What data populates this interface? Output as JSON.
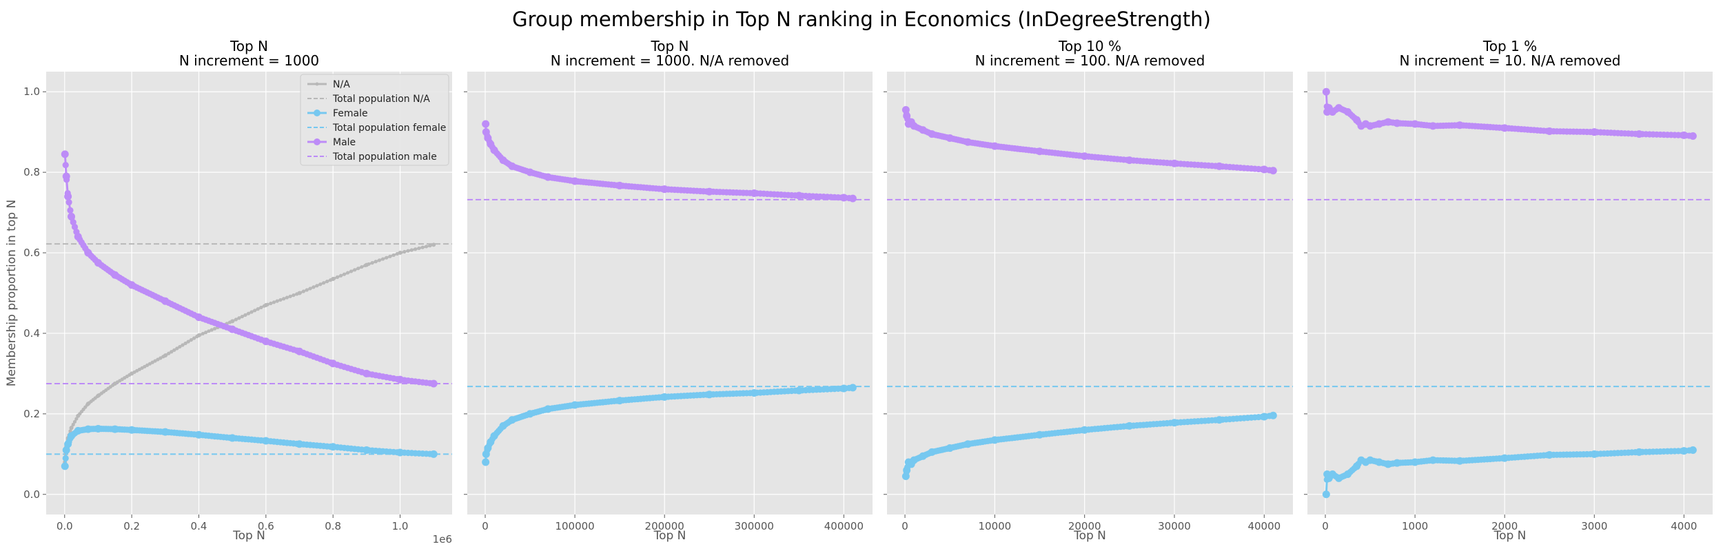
{
  "figure": {
    "title": "Group membership in Top N ranking in Economics (InDegreeStrength)"
  },
  "colors": {
    "na": "#b8b8b8",
    "female": "#76c8f0",
    "male": "#bd8cf7",
    "axes_bg": "#e5e5e5",
    "grid": "#ffffff"
  },
  "legend": {
    "entries": [
      "N/A",
      "Total population N/A",
      "Female",
      "Total population female",
      "Male",
      "Total population male"
    ]
  },
  "chart_data": [
    {
      "type": "line",
      "title": "Top N",
      "subtitle": "N increment = 1000",
      "xlabel": "Top N",
      "ylabel": "Membership proportion in top N",
      "x_offset_label": "1e6",
      "xlim": [
        -0.055,
        1.155
      ],
      "ylim": [
        -0.05,
        1.05
      ],
      "xticks": [
        0.0,
        0.2,
        0.4,
        0.6,
        0.8,
        1.0
      ],
      "xtick_labels": [
        "0.0",
        "0.2",
        "0.4",
        "0.6",
        "0.8",
        "1.0"
      ],
      "yticks": [
        0.0,
        0.2,
        0.4,
        0.6,
        0.8,
        1.0
      ],
      "ytick_labels": [
        "0.0",
        "0.2",
        "0.4",
        "0.6",
        "0.8",
        "1.0"
      ],
      "grid": true,
      "legend_position": "top-right",
      "series": [
        {
          "name": "N/A",
          "color_key": "na",
          "x": [
            0.001,
            0.005,
            0.01,
            0.02,
            0.04,
            0.07,
            0.1,
            0.15,
            0.2,
            0.3,
            0.4,
            0.5,
            0.6,
            0.7,
            0.8,
            0.9,
            1.0,
            1.1
          ],
          "y": [
            0.08,
            0.12,
            0.14,
            0.165,
            0.195,
            0.225,
            0.245,
            0.275,
            0.3,
            0.345,
            0.395,
            0.43,
            0.47,
            0.5,
            0.535,
            0.57,
            0.6,
            0.62
          ]
        },
        {
          "name": "Female",
          "color_key": "female",
          "x": [
            0.001,
            0.005,
            0.01,
            0.02,
            0.04,
            0.07,
            0.1,
            0.15,
            0.2,
            0.3,
            0.4,
            0.5,
            0.6,
            0.7,
            0.8,
            0.9,
            1.0,
            1.1
          ],
          "y": [
            0.07,
            0.11,
            0.125,
            0.145,
            0.158,
            0.162,
            0.163,
            0.162,
            0.16,
            0.155,
            0.148,
            0.14,
            0.133,
            0.125,
            0.118,
            0.11,
            0.104,
            0.1
          ]
        },
        {
          "name": "Male",
          "color_key": "male",
          "x": [
            0.001,
            0.005,
            0.01,
            0.02,
            0.04,
            0.07,
            0.1,
            0.15,
            0.2,
            0.3,
            0.4,
            0.5,
            0.6,
            0.7,
            0.8,
            0.9,
            1.0,
            1.1
          ],
          "y": [
            0.845,
            0.79,
            0.74,
            0.69,
            0.64,
            0.6,
            0.575,
            0.545,
            0.52,
            0.48,
            0.44,
            0.41,
            0.38,
            0.355,
            0.325,
            0.3,
            0.285,
            0.275
          ]
        }
      ],
      "reference_lines": [
        {
          "name": "Total population N/A",
          "color_key": "na",
          "y": 0.622
        },
        {
          "name": "Total population female",
          "color_key": "female",
          "y": 0.1
        },
        {
          "name": "Total population male",
          "color_key": "male",
          "y": 0.275
        }
      ]
    },
    {
      "type": "line",
      "title": "Top N",
      "subtitle": "N increment = 1000. N/A removed",
      "xlabel": "Top N",
      "xlim": [
        -20000,
        432000
      ],
      "ylim": [
        -0.05,
        1.05
      ],
      "xticks": [
        0,
        100000,
        200000,
        300000,
        400000
      ],
      "xtick_labels": [
        "0",
        "100000",
        "200000",
        "300000",
        "400000"
      ],
      "yticks": [
        0.0,
        0.2,
        0.4,
        0.6,
        0.8,
        1.0
      ],
      "grid": true,
      "series": [
        {
          "name": "Female",
          "color_key": "female",
          "x": [
            500,
            1000,
            3000,
            6000,
            10000,
            20000,
            30000,
            50000,
            70000,
            100000,
            150000,
            200000,
            250000,
            300000,
            350000,
            400000,
            410000
          ],
          "y": [
            0.08,
            0.1,
            0.115,
            0.13,
            0.145,
            0.17,
            0.185,
            0.2,
            0.212,
            0.222,
            0.233,
            0.242,
            0.248,
            0.252,
            0.258,
            0.263,
            0.265
          ]
        },
        {
          "name": "Male",
          "color_key": "male",
          "x": [
            500,
            1000,
            3000,
            6000,
            10000,
            20000,
            30000,
            50000,
            70000,
            100000,
            150000,
            200000,
            250000,
            300000,
            350000,
            400000,
            410000
          ],
          "y": [
            0.92,
            0.9,
            0.885,
            0.87,
            0.855,
            0.83,
            0.815,
            0.8,
            0.788,
            0.778,
            0.767,
            0.758,
            0.752,
            0.748,
            0.742,
            0.737,
            0.735
          ]
        }
      ],
      "reference_lines": [
        {
          "name": "Total population female",
          "color_key": "female",
          "y": 0.268
        },
        {
          "name": "Total population male",
          "color_key": "male",
          "y": 0.732
        }
      ]
    },
    {
      "type": "line",
      "title": "Top 10 %",
      "subtitle": "N increment = 100. N/A removed",
      "xlabel": "Top N",
      "xlim": [
        -2000,
        43200
      ],
      "ylim": [
        -0.05,
        1.05
      ],
      "xticks": [
        0,
        10000,
        20000,
        30000,
        40000
      ],
      "xtick_labels": [
        "0",
        "10000",
        "20000",
        "30000",
        "40000"
      ],
      "yticks": [
        0.0,
        0.2,
        0.4,
        0.6,
        0.8,
        1.0
      ],
      "grid": true,
      "series": [
        {
          "name": "Female",
          "color_key": "female",
          "x": [
            100,
            200,
            400,
            700,
            1000,
            2000,
            3000,
            5000,
            7000,
            10000,
            15000,
            20000,
            25000,
            30000,
            35000,
            40000,
            41000
          ],
          "y": [
            0.045,
            0.06,
            0.08,
            0.075,
            0.085,
            0.095,
            0.105,
            0.115,
            0.125,
            0.135,
            0.148,
            0.16,
            0.17,
            0.178,
            0.185,
            0.193,
            0.196
          ]
        },
        {
          "name": "Male",
          "color_key": "male",
          "x": [
            100,
            200,
            400,
            700,
            1000,
            2000,
            3000,
            5000,
            7000,
            10000,
            15000,
            20000,
            25000,
            30000,
            35000,
            40000,
            41000
          ],
          "y": [
            0.955,
            0.94,
            0.92,
            0.925,
            0.915,
            0.905,
            0.895,
            0.885,
            0.875,
            0.865,
            0.852,
            0.84,
            0.83,
            0.822,
            0.815,
            0.807,
            0.804
          ]
        }
      ],
      "reference_lines": [
        {
          "name": "Total population female",
          "color_key": "female",
          "y": 0.268
        },
        {
          "name": "Total population male",
          "color_key": "male",
          "y": 0.732
        }
      ]
    },
    {
      "type": "line",
      "title": "Top 1 %",
      "subtitle": "N increment = 10. N/A removed",
      "xlabel": "Top N",
      "xlim": [
        -200,
        4320
      ],
      "ylim": [
        -0.05,
        1.05
      ],
      "xticks": [
        0,
        1000,
        2000,
        3000,
        4000
      ],
      "xtick_labels": [
        "0",
        "1000",
        "2000",
        "3000",
        "4000"
      ],
      "yticks": [
        0.0,
        0.2,
        0.4,
        0.6,
        0.8,
        1.0
      ],
      "grid": true,
      "series": [
        {
          "name": "Female",
          "color_key": "female",
          "x": [
            10,
            20,
            40,
            80,
            150,
            250,
            350,
            400,
            450,
            500,
            600,
            700,
            800,
            1000,
            1200,
            1500,
            2000,
            2500,
            3000,
            3500,
            4000,
            4100
          ],
          "y": [
            0.0,
            0.05,
            0.04,
            0.05,
            0.04,
            0.05,
            0.07,
            0.085,
            0.08,
            0.085,
            0.08,
            0.075,
            0.078,
            0.08,
            0.085,
            0.083,
            0.09,
            0.098,
            0.1,
            0.105,
            0.108,
            0.11
          ]
        },
        {
          "name": "Male",
          "color_key": "male",
          "x": [
            10,
            20,
            40,
            80,
            150,
            250,
            350,
            400,
            450,
            500,
            600,
            700,
            800,
            1000,
            1200,
            1500,
            2000,
            2500,
            3000,
            3500,
            4000,
            4100
          ],
          "y": [
            1.0,
            0.95,
            0.96,
            0.95,
            0.96,
            0.95,
            0.93,
            0.915,
            0.92,
            0.915,
            0.92,
            0.925,
            0.922,
            0.92,
            0.915,
            0.917,
            0.91,
            0.902,
            0.9,
            0.895,
            0.892,
            0.89
          ]
        }
      ],
      "reference_lines": [
        {
          "name": "Total population female",
          "color_key": "female",
          "y": 0.268
        },
        {
          "name": "Total population male",
          "color_key": "male",
          "y": 0.732
        }
      ]
    }
  ]
}
